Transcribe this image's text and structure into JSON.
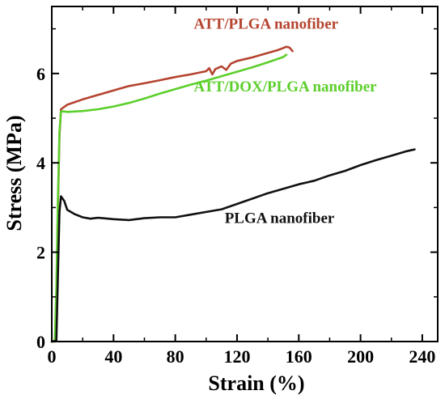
{
  "chart_data": {
    "type": "line",
    "title": "",
    "xlabel": "Strain (%)",
    "ylabel": "Stress (MPa)",
    "xlim": [
      0,
      250
    ],
    "ylim": [
      0,
      7.5
    ],
    "x_ticks": [
      0,
      40,
      80,
      120,
      160,
      200,
      240
    ],
    "y_ticks": [
      0,
      2,
      4,
      6
    ],
    "grid": false,
    "legend": "none",
    "series": [
      {
        "name": "ATT/PLGA nanofiber",
        "color": "#b5442f",
        "points": [
          [
            0,
            0
          ],
          [
            2,
            0
          ],
          [
            3,
            1.0
          ],
          [
            4,
            3.0
          ],
          [
            5,
            4.6
          ],
          [
            6,
            5.2
          ],
          [
            8,
            5.25
          ],
          [
            10,
            5.3
          ],
          [
            20,
            5.42
          ],
          [
            30,
            5.52
          ],
          [
            40,
            5.62
          ],
          [
            50,
            5.72
          ],
          [
            60,
            5.78
          ],
          [
            70,
            5.85
          ],
          [
            80,
            5.92
          ],
          [
            90,
            5.98
          ],
          [
            100,
            6.05
          ],
          [
            102,
            6.12
          ],
          [
            104,
            5.98
          ],
          [
            106,
            6.1
          ],
          [
            110,
            6.16
          ],
          [
            113,
            6.08
          ],
          [
            116,
            6.22
          ],
          [
            120,
            6.28
          ],
          [
            130,
            6.36
          ],
          [
            140,
            6.46
          ],
          [
            146,
            6.52
          ],
          [
            150,
            6.57
          ],
          [
            152,
            6.6
          ],
          [
            154,
            6.58
          ],
          [
            156,
            6.5
          ]
        ]
      },
      {
        "name": "ATT/DOX/PLGA nanofiber",
        "color": "#5ccf2c",
        "points": [
          [
            0,
            0
          ],
          [
            2,
            0
          ],
          [
            3,
            1.2
          ],
          [
            4,
            3.2
          ],
          [
            5,
            4.7
          ],
          [
            6,
            5.15
          ],
          [
            8,
            5.15
          ],
          [
            10,
            5.14
          ],
          [
            20,
            5.16
          ],
          [
            30,
            5.2
          ],
          [
            40,
            5.26
          ],
          [
            50,
            5.34
          ],
          [
            60,
            5.44
          ],
          [
            70,
            5.55
          ],
          [
            80,
            5.65
          ],
          [
            90,
            5.75
          ],
          [
            100,
            5.84
          ],
          [
            110,
            5.94
          ],
          [
            120,
            6.04
          ],
          [
            130,
            6.14
          ],
          [
            140,
            6.25
          ],
          [
            150,
            6.37
          ],
          [
            152,
            6.42
          ]
        ]
      },
      {
        "name": "PLGA nanofiber",
        "color": "#111111",
        "points": [
          [
            0,
            0
          ],
          [
            3,
            0.02
          ],
          [
            4,
            1.5
          ],
          [
            5,
            2.9
          ],
          [
            6,
            3.25
          ],
          [
            8,
            3.15
          ],
          [
            10,
            2.95
          ],
          [
            15,
            2.85
          ],
          [
            20,
            2.78
          ],
          [
            25,
            2.75
          ],
          [
            30,
            2.77
          ],
          [
            40,
            2.74
          ],
          [
            50,
            2.72
          ],
          [
            60,
            2.76
          ],
          [
            70,
            2.78
          ],
          [
            80,
            2.78
          ],
          [
            90,
            2.84
          ],
          [
            100,
            2.9
          ],
          [
            110,
            2.96
          ],
          [
            120,
            3.08
          ],
          [
            130,
            3.2
          ],
          [
            140,
            3.32
          ],
          [
            150,
            3.42
          ],
          [
            160,
            3.52
          ],
          [
            170,
            3.6
          ],
          [
            180,
            3.72
          ],
          [
            190,
            3.82
          ],
          [
            200,
            3.95
          ],
          [
            210,
            4.06
          ],
          [
            220,
            4.16
          ],
          [
            230,
            4.26
          ],
          [
            235,
            4.3
          ]
        ]
      }
    ],
    "annotations": [
      {
        "text": "ATT/PLGA nanofiber",
        "x": 92,
        "y": 7.0,
        "color": "#b5442f"
      },
      {
        "text": "ATT/DOX/PLGA nanofiber",
        "x": 92,
        "y": 5.6,
        "color": "#5ccf2c"
      },
      {
        "text": "PLGA nanofiber",
        "x": 112,
        "y": 2.65,
        "color": "#111111"
      }
    ]
  }
}
